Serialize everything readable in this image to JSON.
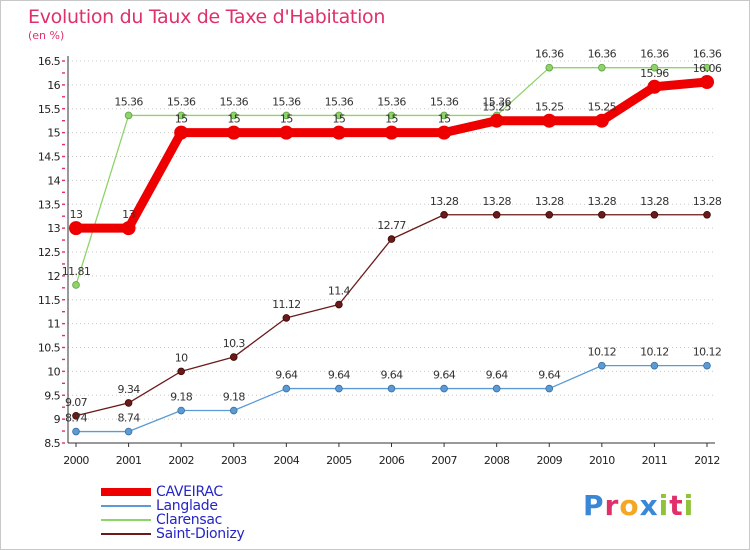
{
  "header": {
    "title": "Evolution du Taux de Taxe d'Habitation",
    "unit": "(en %)"
  },
  "legend": {
    "items": [
      {
        "label": "CAVEIRAC",
        "color": "#ee0000"
      },
      {
        "label": "Langlade",
        "color": "#5a9bd5"
      },
      {
        "label": "Clarensac",
        "color": "#8fd46a"
      },
      {
        "label": "Saint-Dionizy",
        "color": "#6b1a1a"
      }
    ]
  },
  "logo": {
    "text": "Proxiti",
    "colors": [
      "#3a87d6",
      "#e0306a",
      "#f5a623",
      "#3a87d6",
      "#8fc33a",
      "#e0306a",
      "#8fc33a"
    ]
  },
  "chart_data": {
    "type": "line",
    "title": "Evolution du Taux de Taxe d'Habitation",
    "ylabel": "(en %)",
    "xlabel": "",
    "x": [
      "2000",
      "2001",
      "2002",
      "2003",
      "2004",
      "2005",
      "2006",
      "2007",
      "2008",
      "2009",
      "2010",
      "2011",
      "2012"
    ],
    "ylim": [
      8.5,
      16.5
    ],
    "yticks": [
      "8.5",
      "9",
      "9.5",
      "10",
      "10.5",
      "11",
      "11.5",
      "12",
      "12.5",
      "13",
      "13.5",
      "14",
      "14.5",
      "15",
      "15.5",
      "16",
      "16.5"
    ],
    "grid": "horizontal dotted",
    "legend_position": "bottom-left",
    "series": [
      {
        "name": "CAVEIRAC",
        "color": "#ee0000",
        "width": 9,
        "values": [
          13,
          13,
          15,
          15,
          15,
          15,
          15,
          15,
          15.25,
          15.25,
          15.25,
          15.96,
          16.06
        ],
        "labels": [
          "13",
          "13",
          "15",
          "15",
          "15",
          "15",
          "15",
          "15",
          "15.25",
          "15.25",
          "15.25",
          "15.96",
          "16.06"
        ]
      },
      {
        "name": "Langlade",
        "color": "#5a9bd5",
        "width": 1.3,
        "values": [
          8.74,
          8.74,
          9.18,
          9.18,
          9.64,
          9.64,
          9.64,
          9.64,
          9.64,
          9.64,
          10.12,
          10.12,
          10.12
        ],
        "labels": [
          "8.74",
          "8.74",
          "9.18",
          "9.18",
          "9.64",
          "9.64",
          "9.64",
          "9.64",
          "9.64",
          "9.64",
          "10.12",
          "10.12",
          "10.12"
        ]
      },
      {
        "name": "Clarensac",
        "color": "#8fd46a",
        "width": 1.3,
        "values": [
          11.81,
          15.36,
          15.36,
          15.36,
          15.36,
          15.36,
          15.36,
          15.36,
          15.36,
          16.36,
          16.36,
          16.36,
          16.36
        ],
        "labels": [
          "11.81",
          "15.36",
          "15.36",
          "15.36",
          "15.36",
          "15.36",
          "15.36",
          "15.36",
          "15.36",
          "16.36",
          "16.36",
          "16.36",
          "16.36"
        ]
      },
      {
        "name": "Saint-Dionizy",
        "color": "#6b1a1a",
        "width": 1.3,
        "values": [
          9.07,
          9.34,
          10,
          10.3,
          11.12,
          11.4,
          12.77,
          13.28,
          13.28,
          13.28,
          13.28,
          13.28,
          13.28
        ],
        "labels": [
          "9.07",
          "9.34",
          "10",
          "10.3",
          "11.12",
          "11.4",
          "12.77",
          "13.28",
          "13.28",
          "13.28",
          "13.28",
          "13.28",
          "13.28"
        ]
      }
    ]
  }
}
